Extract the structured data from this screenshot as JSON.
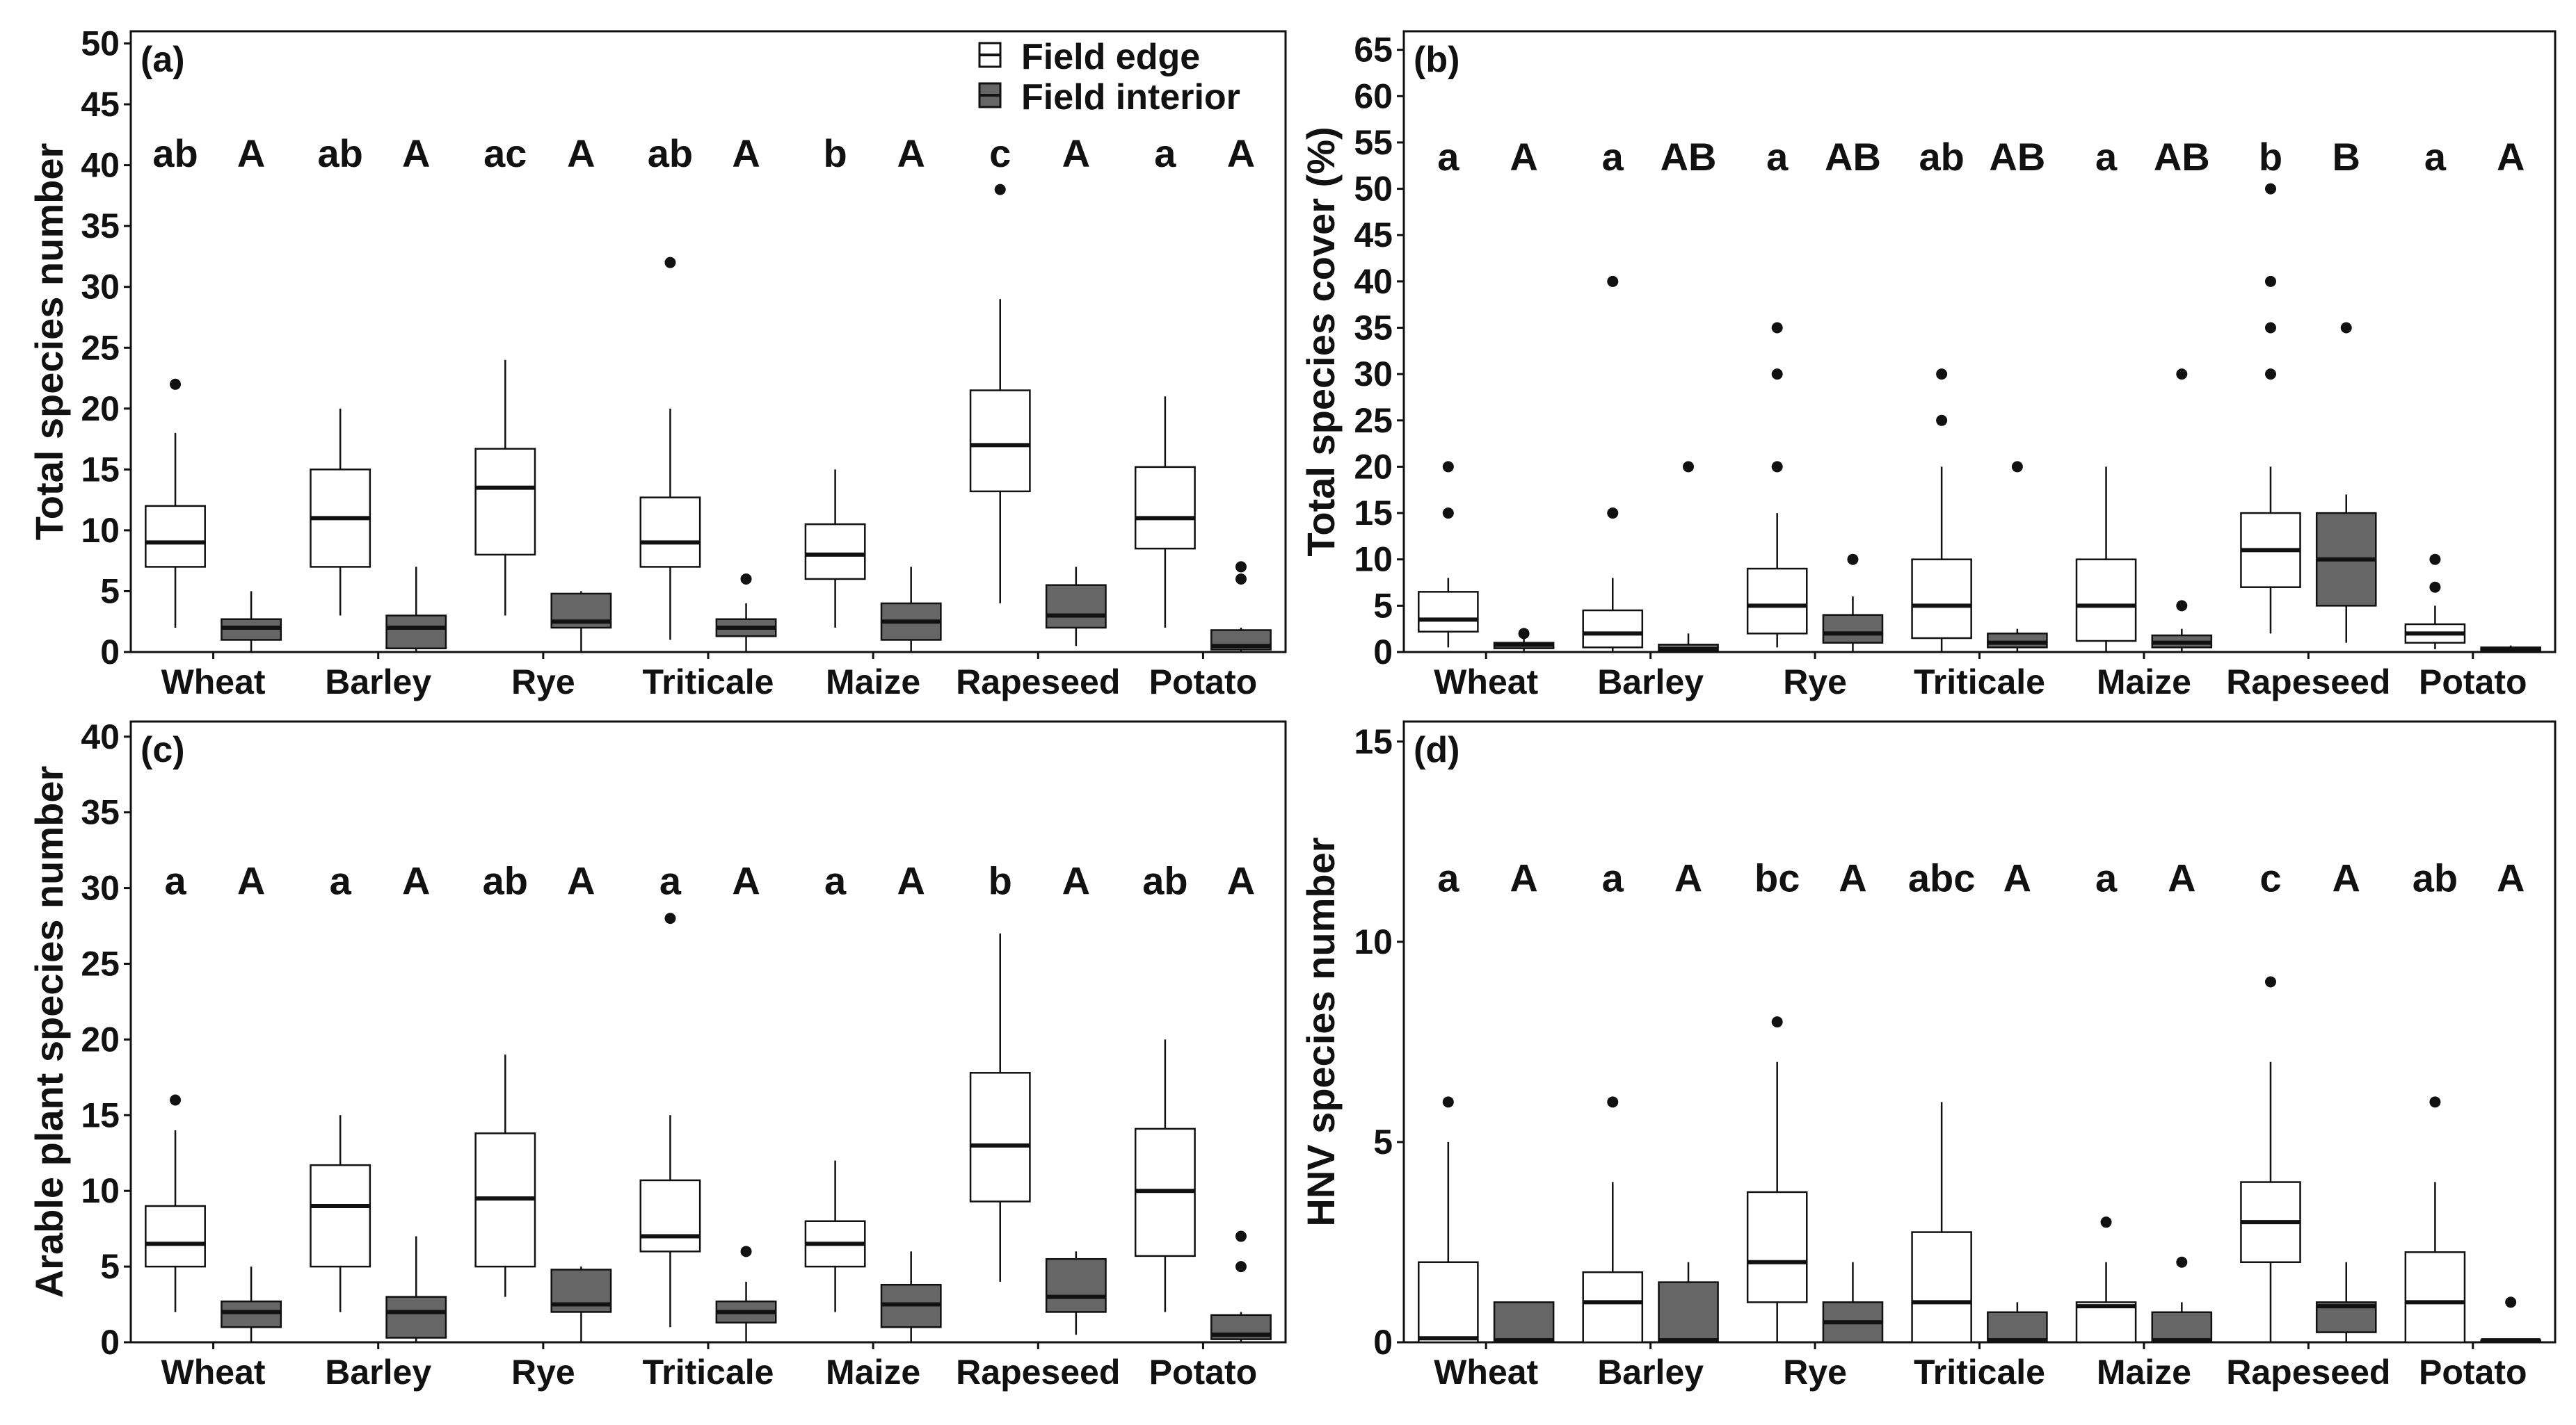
{
  "colors": {
    "edge_fill": "#ffffff",
    "interior_fill": "#666666",
    "line": "#111111",
    "point": "#111111"
  },
  "legend": {
    "edge_label": "Field edge",
    "interior_label": "Field interior"
  },
  "chart_data": [
    {
      "type": "boxplot",
      "panel": "(a)",
      "ylabel": "Total species number",
      "xlabel": "",
      "ylim": [
        0,
        51
      ],
      "yticks": [
        0,
        5,
        10,
        15,
        20,
        25,
        30,
        35,
        40,
        45,
        50
      ],
      "letter_y": 41,
      "categories": [
        "Wheat",
        "Barley",
        "Rye",
        "Triticale",
        "Maize",
        "Rapeseed",
        "Potato"
      ],
      "series": [
        {
          "name": "Field edge",
          "letters": [
            "ab",
            "ab",
            "ac",
            "ab",
            "b",
            "c",
            "a"
          ],
          "boxes": [
            {
              "min": 2,
              "q1": 7,
              "median": 9,
              "q3": 12,
              "max": 18,
              "outliers": [
                22
              ]
            },
            {
              "min": 3,
              "q1": 7,
              "median": 11,
              "q3": 15,
              "max": 20,
              "outliers": []
            },
            {
              "min": 3,
              "q1": 8,
              "median": 13.5,
              "q3": 16.7,
              "max": 24,
              "outliers": []
            },
            {
              "min": 1,
              "q1": 7,
              "median": 9,
              "q3": 12.7,
              "max": 20,
              "outliers": [
                32
              ]
            },
            {
              "min": 2,
              "q1": 6,
              "median": 8,
              "q3": 10.5,
              "max": 15,
              "outliers": []
            },
            {
              "min": 4,
              "q1": 13.2,
              "median": 17,
              "q3": 21.5,
              "max": 29,
              "outliers": [
                38
              ]
            },
            {
              "min": 2,
              "q1": 8.5,
              "median": 11,
              "q3": 15.2,
              "max": 21,
              "outliers": []
            }
          ]
        },
        {
          "name": "Field interior",
          "letters": [
            "A",
            "A",
            "A",
            "A",
            "A",
            "A",
            "A"
          ],
          "boxes": [
            {
              "min": 0,
              "q1": 1,
              "median": 2,
              "q3": 2.7,
              "max": 5,
              "outliers": []
            },
            {
              "min": 0,
              "q1": 0.3,
              "median": 2,
              "q3": 3,
              "max": 7,
              "outliers": []
            },
            {
              "min": 0,
              "q1": 2,
              "median": 2.5,
              "q3": 4.8,
              "max": 5,
              "outliers": []
            },
            {
              "min": 0,
              "q1": 1.3,
              "median": 2,
              "q3": 2.7,
              "max": 4,
              "outliers": [
                6
              ]
            },
            {
              "min": 0,
              "q1": 1,
              "median": 2.5,
              "q3": 4,
              "max": 7,
              "outliers": []
            },
            {
              "min": 0.5,
              "q1": 2,
              "median": 3,
              "q3": 5.5,
              "max": 7,
              "outliers": []
            },
            {
              "min": 0,
              "q1": 0.2,
              "median": 0.5,
              "q3": 1.8,
              "max": 2,
              "outliers": [
                6,
                7
              ]
            }
          ]
        }
      ]
    },
    {
      "type": "boxplot",
      "panel": "(b)",
      "ylabel": "Total species cover (%)",
      "xlabel": "",
      "ylim": [
        0,
        67
      ],
      "yticks": [
        0,
        5,
        10,
        15,
        20,
        25,
        30,
        35,
        40,
        45,
        50,
        55,
        60,
        65
      ],
      "letter_y": 53.5,
      "categories": [
        "Wheat",
        "Barley",
        "Rye",
        "Triticale",
        "Maize",
        "Rapeseed",
        "Potato"
      ],
      "series": [
        {
          "name": "Field edge",
          "letters": [
            "a",
            "a",
            "a",
            "ab",
            "a",
            "b",
            "a"
          ],
          "boxes": [
            {
              "min": 0.5,
              "q1": 2.2,
              "median": 3.5,
              "q3": 6.5,
              "max": 8,
              "outliers": [
                15,
                20
              ]
            },
            {
              "min": 0,
              "q1": 0.5,
              "median": 2,
              "q3": 4.5,
              "max": 8,
              "outliers": [
                15,
                40
              ]
            },
            {
              "min": 0.5,
              "q1": 2,
              "median": 5,
              "q3": 9,
              "max": 15,
              "outliers": [
                20,
                30,
                35
              ]
            },
            {
              "min": 0,
              "q1": 1.5,
              "median": 5,
              "q3": 10,
              "max": 20,
              "outliers": [
                25,
                30
              ]
            },
            {
              "min": 0,
              "q1": 1.2,
              "median": 5,
              "q3": 10,
              "max": 20,
              "outliers": []
            },
            {
              "min": 2,
              "q1": 7,
              "median": 11,
              "q3": 15,
              "max": 20,
              "outliers": [
                30,
                35,
                40,
                50
              ]
            },
            {
              "min": 0.3,
              "q1": 1,
              "median": 2,
              "q3": 3,
              "max": 5,
              "outliers": [
                7,
                10
              ]
            }
          ]
        },
        {
          "name": "Field interior",
          "letters": [
            "A",
            "AB",
            "AB",
            "AB",
            "AB",
            "B",
            "A"
          ],
          "boxes": [
            {
              "min": 0,
              "q1": 0.4,
              "median": 0.8,
              "q3": 1,
              "max": 1.5,
              "outliers": [
                2
              ]
            },
            {
              "min": 0,
              "q1": 0,
              "median": 0.3,
              "q3": 0.8,
              "max": 2,
              "outliers": [
                20
              ]
            },
            {
              "min": 0,
              "q1": 1,
              "median": 2,
              "q3": 4,
              "max": 6,
              "outliers": [
                10
              ]
            },
            {
              "min": 0,
              "q1": 0.5,
              "median": 1,
              "q3": 2,
              "max": 2.5,
              "outliers": [
                20
              ]
            },
            {
              "min": 0,
              "q1": 0.5,
              "median": 1,
              "q3": 1.8,
              "max": 2.5,
              "outliers": [
                5,
                30
              ]
            },
            {
              "min": 1,
              "q1": 5,
              "median": 10,
              "q3": 15,
              "max": 17,
              "outliers": [
                35
              ]
            },
            {
              "min": 0,
              "q1": 0.1,
              "median": 0.3,
              "q3": 0.5,
              "max": 0.7,
              "outliers": []
            }
          ]
        }
      ]
    },
    {
      "type": "boxplot",
      "panel": "(c)",
      "ylabel": "Arable plant species number",
      "xlabel": "",
      "ylim": [
        0,
        41
      ],
      "yticks": [
        0,
        5,
        10,
        15,
        20,
        25,
        30,
        35,
        40
      ],
      "letter_y": 30.5,
      "categories": [
        "Wheat",
        "Barley",
        "Rye",
        "Triticale",
        "Maize",
        "Rapeseed",
        "Potato"
      ],
      "series": [
        {
          "name": "Field edge",
          "letters": [
            "a",
            "a",
            "ab",
            "a",
            "a",
            "b",
            "ab"
          ],
          "boxes": [
            {
              "min": 2,
              "q1": 5,
              "median": 6.5,
              "q3": 9,
              "max": 14,
              "outliers": [
                16
              ]
            },
            {
              "min": 2,
              "q1": 5,
              "median": 9,
              "q3": 11.7,
              "max": 15,
              "outliers": []
            },
            {
              "min": 3,
              "q1": 5,
              "median": 9.5,
              "q3": 13.8,
              "max": 19,
              "outliers": []
            },
            {
              "min": 1,
              "q1": 6,
              "median": 7,
              "q3": 10.7,
              "max": 15,
              "outliers": [
                28
              ]
            },
            {
              "min": 2,
              "q1": 5,
              "median": 6.5,
              "q3": 8,
              "max": 12,
              "outliers": []
            },
            {
              "min": 4,
              "q1": 9.3,
              "median": 13,
              "q3": 17.8,
              "max": 27,
              "outliers": []
            },
            {
              "min": 2,
              "q1": 5.7,
              "median": 10,
              "q3": 14.1,
              "max": 20,
              "outliers": []
            }
          ]
        },
        {
          "name": "Field interior",
          "letters": [
            "A",
            "A",
            "A",
            "A",
            "A",
            "A",
            "A"
          ],
          "boxes": [
            {
              "min": 0,
              "q1": 1,
              "median": 2,
              "q3": 2.7,
              "max": 5,
              "outliers": []
            },
            {
              "min": 0,
              "q1": 0.3,
              "median": 2,
              "q3": 3,
              "max": 7,
              "outliers": []
            },
            {
              "min": 0,
              "q1": 2,
              "median": 2.5,
              "q3": 4.8,
              "max": 5,
              "outliers": []
            },
            {
              "min": 0,
              "q1": 1.3,
              "median": 2,
              "q3": 2.7,
              "max": 4,
              "outliers": [
                6
              ]
            },
            {
              "min": 0,
              "q1": 1,
              "median": 2.5,
              "q3": 3.8,
              "max": 6,
              "outliers": []
            },
            {
              "min": 0.5,
              "q1": 2,
              "median": 3,
              "q3": 5.5,
              "max": 6,
              "outliers": []
            },
            {
              "min": 0,
              "q1": 0.2,
              "median": 0.5,
              "q3": 1.8,
              "max": 2,
              "outliers": [
                5,
                7
              ]
            }
          ]
        }
      ]
    },
    {
      "type": "boxplot",
      "panel": "(d)",
      "ylabel": "HNV species number",
      "xlabel": "",
      "ylim": [
        0,
        15.5
      ],
      "yticks": [
        0,
        5,
        10,
        15
      ],
      "letter_y": 11.6,
      "categories": [
        "Wheat",
        "Barley",
        "Rye",
        "Triticale",
        "Maize",
        "Rapeseed",
        "Potato"
      ],
      "series": [
        {
          "name": "Field edge",
          "letters": [
            "a",
            "a",
            "bc",
            "abc",
            "a",
            "c",
            "ab"
          ],
          "boxes": [
            {
              "min": 0,
              "q1": 0,
              "median": 0.1,
              "q3": 2,
              "max": 5,
              "outliers": [
                6
              ]
            },
            {
              "min": 0,
              "q1": 0,
              "median": 1,
              "q3": 1.75,
              "max": 4,
              "outliers": [
                6
              ]
            },
            {
              "min": 0,
              "q1": 1,
              "median": 2,
              "q3": 3.75,
              "max": 7,
              "outliers": [
                8
              ]
            },
            {
              "min": 0,
              "q1": 0,
              "median": 1,
              "q3": 2.75,
              "max": 6,
              "outliers": []
            },
            {
              "min": 0,
              "q1": 0,
              "median": 0.9,
              "q3": 1,
              "max": 2,
              "outliers": [
                3
              ]
            },
            {
              "min": 0,
              "q1": 2,
              "median": 3,
              "q3": 4,
              "max": 7,
              "outliers": [
                9
              ]
            },
            {
              "min": 0,
              "q1": 0,
              "median": 1,
              "q3": 2.25,
              "max": 4,
              "outliers": [
                6
              ]
            }
          ]
        },
        {
          "name": "Field interior",
          "letters": [
            "A",
            "A",
            "A",
            "A",
            "A",
            "A",
            "A"
          ],
          "boxes": [
            {
              "min": 0,
              "q1": 0,
              "median": 0.05,
              "q3": 1,
              "max": 1,
              "outliers": []
            },
            {
              "min": 0,
              "q1": 0,
              "median": 0.05,
              "q3": 1.5,
              "max": 2,
              "outliers": []
            },
            {
              "min": 0,
              "q1": 0,
              "median": 0.5,
              "q3": 1,
              "max": 2,
              "outliers": []
            },
            {
              "min": 0,
              "q1": 0,
              "median": 0.05,
              "q3": 0.75,
              "max": 1,
              "outliers": []
            },
            {
              "min": 0,
              "q1": 0,
              "median": 0.05,
              "q3": 0.75,
              "max": 1,
              "outliers": [
                2
              ]
            },
            {
              "min": 0,
              "q1": 0.25,
              "median": 0.9,
              "q3": 1,
              "max": 2,
              "outliers": []
            },
            {
              "min": 0,
              "q1": 0,
              "median": 0.05,
              "q3": 0.05,
              "max": 0.05,
              "outliers": [
                1
              ]
            }
          ]
        }
      ]
    }
  ]
}
